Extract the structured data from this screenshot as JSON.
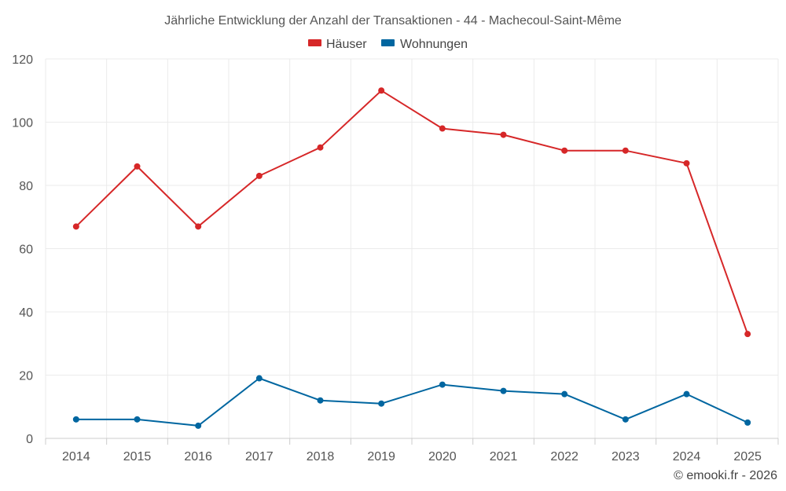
{
  "chart_data": {
    "type": "line",
    "title": "Jährliche Entwicklung der Anzahl der Transaktionen - 44 - Machecoul-Saint-Même",
    "categories": [
      "2014",
      "2015",
      "2016",
      "2017",
      "2018",
      "2019",
      "2020",
      "2021",
      "2022",
      "2023",
      "2024",
      "2025"
    ],
    "series": [
      {
        "name": "Häuser",
        "color": "#d62728",
        "values": [
          67,
          86,
          67,
          83,
          92,
          110,
          98,
          96,
          91,
          91,
          87,
          33
        ]
      },
      {
        "name": "Wohnungen",
        "color": "#0066a0",
        "values": [
          6,
          6,
          4,
          19,
          12,
          11,
          17,
          15,
          14,
          6,
          14,
          5
        ]
      }
    ],
    "xlabel": "",
    "ylabel": "",
    "ylim": [
      0,
      120
    ],
    "yticks": [
      0,
      20,
      40,
      60,
      80,
      100,
      120
    ],
    "grid": true,
    "legend_position": "top-center"
  },
  "credit": "© emooki.fr - 2026"
}
